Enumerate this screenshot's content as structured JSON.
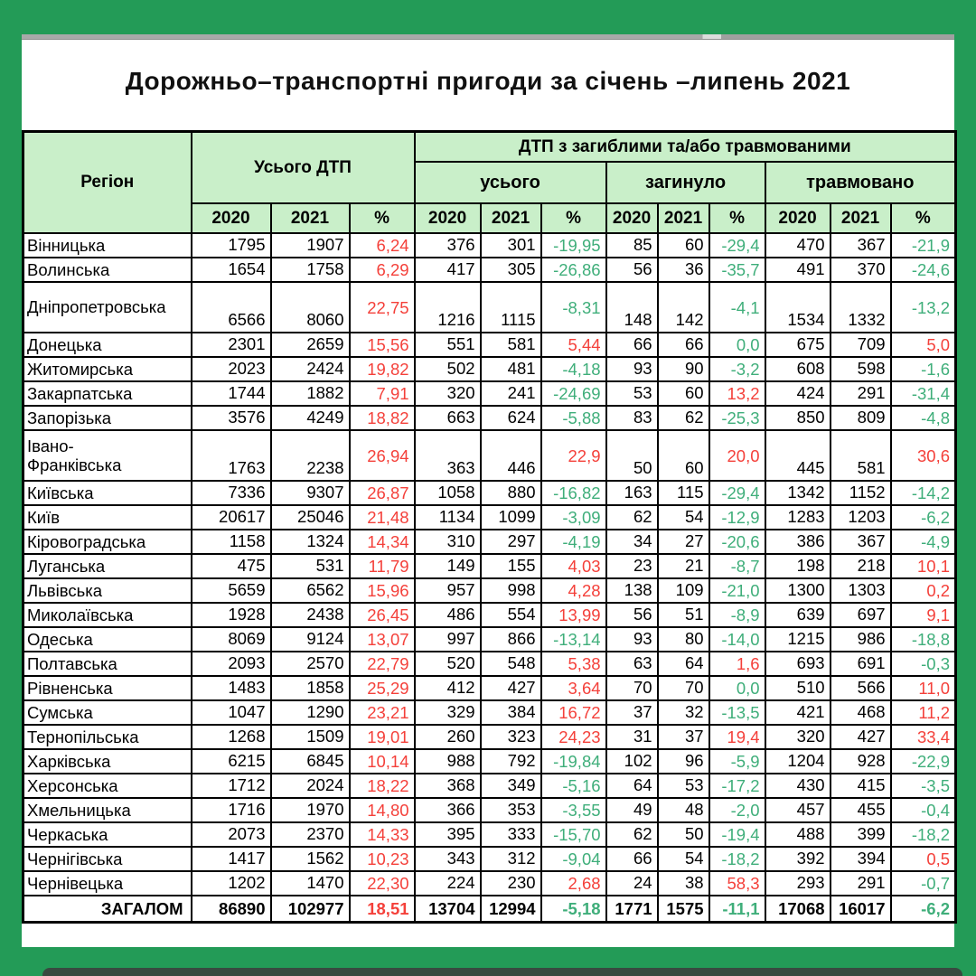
{
  "title": "Дорожньо–транспортні пригоди за січень –липень 2021",
  "colors": {
    "frame_green": "#239b57",
    "header_fill": "#c9efc9",
    "positive_red": "#f4403a",
    "negative_green": "#3fae7a"
  },
  "table": {
    "region_header": "Регіон",
    "total_dtp_header": "Усього ДТП",
    "casualties_header": "ДТП з загиблими та/або травмованими",
    "subgroups": [
      "усього",
      "загинуло",
      "травмовано"
    ],
    "year_headers": [
      "2020",
      "2021",
      "%"
    ],
    "rows": [
      {
        "region": "Вінницька",
        "values": [
          "1795",
          "1907",
          "6,24",
          "376",
          "301",
          "-19,95",
          "85",
          "60",
          "-29,4",
          "470",
          "367",
          "-21,9"
        ]
      },
      {
        "region": "Волинська",
        "values": [
          "1654",
          "1758",
          "6,29",
          "417",
          "305",
          "-26,86",
          "56",
          "36",
          "-35,7",
          "491",
          "370",
          "-24,6"
        ]
      },
      {
        "region": "Дніпропетровська",
        "tall": true,
        "values": [
          "6566",
          "8060",
          "22,75",
          "1216",
          "1115",
          "-8,31",
          "148",
          "142",
          "-4,1",
          "1534",
          "1332",
          "-13,2"
        ]
      },
      {
        "region": "Донецька",
        "values": [
          "2301",
          "2659",
          "15,56",
          "551",
          "581",
          "5,44",
          "66",
          "66",
          "0,0",
          "675",
          "709",
          "5,0"
        ]
      },
      {
        "region": "Житомирська",
        "values": [
          "2023",
          "2424",
          "19,82",
          "502",
          "481",
          "-4,18",
          "93",
          "90",
          "-3,2",
          "608",
          "598",
          "-1,6"
        ]
      },
      {
        "region": "Закарпатська",
        "values": [
          "1744",
          "1882",
          "7,91",
          "320",
          "241",
          "-24,69",
          "53",
          "60",
          "13,2",
          "424",
          "291",
          "-31,4"
        ]
      },
      {
        "region": "Запорізька",
        "values": [
          "3576",
          "4249",
          "18,82",
          "663",
          "624",
          "-5,88",
          "83",
          "62",
          "-25,3",
          "850",
          "809",
          "-4,8"
        ]
      },
      {
        "region": "Івано-\nФранківська",
        "tall": true,
        "values": [
          "1763",
          "2238",
          "26,94",
          "363",
          "446",
          "22,9",
          "50",
          "60",
          "20,0",
          "445",
          "581",
          "30,6"
        ]
      },
      {
        "region": "Київська",
        "values": [
          "7336",
          "9307",
          "26,87",
          "1058",
          "880",
          "-16,82",
          "163",
          "115",
          "-29,4",
          "1342",
          "1152",
          "-14,2"
        ]
      },
      {
        "region": "Київ",
        "values": [
          "20617",
          "25046",
          "21,48",
          "1134",
          "1099",
          "-3,09",
          "62",
          "54",
          "-12,9",
          "1283",
          "1203",
          "-6,2"
        ]
      },
      {
        "region": "Кіровоградська",
        "values": [
          "1158",
          "1324",
          "14,34",
          "310",
          "297",
          "-4,19",
          "34",
          "27",
          "-20,6",
          "386",
          "367",
          "-4,9"
        ]
      },
      {
        "region": "Луганська",
        "values": [
          "475",
          "531",
          "11,79",
          "149",
          "155",
          "4,03",
          "23",
          "21",
          "-8,7",
          "198",
          "218",
          "10,1"
        ]
      },
      {
        "region": "Львівська",
        "values": [
          "5659",
          "6562",
          "15,96",
          "957",
          "998",
          "4,28",
          "138",
          "109",
          "-21,0",
          "1300",
          "1303",
          "0,2"
        ]
      },
      {
        "region": "Миколаївська",
        "values": [
          "1928",
          "2438",
          "26,45",
          "486",
          "554",
          "13,99",
          "56",
          "51",
          "-8,9",
          "639",
          "697",
          "9,1"
        ]
      },
      {
        "region": "Одеська",
        "values": [
          "8069",
          "9124",
          "13,07",
          "997",
          "866",
          "-13,14",
          "93",
          "80",
          "-14,0",
          "1215",
          "986",
          "-18,8"
        ]
      },
      {
        "region": "Полтавська",
        "values": [
          "2093",
          "2570",
          "22,79",
          "520",
          "548",
          "5,38",
          "63",
          "64",
          "1,6",
          "693",
          "691",
          "-0,3"
        ]
      },
      {
        "region": "Рівненська",
        "values": [
          "1483",
          "1858",
          "25,29",
          "412",
          "427",
          "3,64",
          "70",
          "70",
          "0,0",
          "510",
          "566",
          "11,0"
        ]
      },
      {
        "region": "Сумська",
        "values": [
          "1047",
          "1290",
          "23,21",
          "329",
          "384",
          "16,72",
          "37",
          "32",
          "-13,5",
          "421",
          "468",
          "11,2"
        ]
      },
      {
        "region": "Тернопільська",
        "values": [
          "1268",
          "1509",
          "19,01",
          "260",
          "323",
          "24,23",
          "31",
          "37",
          "19,4",
          "320",
          "427",
          "33,4"
        ]
      },
      {
        "region": "Харківська",
        "values": [
          "6215",
          "6845",
          "10,14",
          "988",
          "792",
          "-19,84",
          "102",
          "96",
          "-5,9",
          "1204",
          "928",
          "-22,9"
        ]
      },
      {
        "region": "Херсонська",
        "values": [
          "1712",
          "2024",
          "18,22",
          "368",
          "349",
          "-5,16",
          "64",
          "53",
          "-17,2",
          "430",
          "415",
          "-3,5"
        ]
      },
      {
        "region": "Хмельницька",
        "values": [
          "1716",
          "1970",
          "14,80",
          "366",
          "353",
          "-3,55",
          "49",
          "48",
          "-2,0",
          "457",
          "455",
          "-0,4"
        ]
      },
      {
        "region": "Черкаська",
        "values": [
          "2073",
          "2370",
          "14,33",
          "395",
          "333",
          "-15,70",
          "62",
          "50",
          "-19,4",
          "488",
          "399",
          "-18,2"
        ]
      },
      {
        "region": "Чернігівська",
        "values": [
          "1417",
          "1562",
          "10,23",
          "343",
          "312",
          "-9,04",
          "66",
          "54",
          "-18,2",
          "392",
          "394",
          "0,5"
        ]
      },
      {
        "region": "Чернівецька",
        "values": [
          "1202",
          "1470",
          "22,30",
          "224",
          "230",
          "2,68",
          "24",
          "38",
          "58,3",
          "293",
          "291",
          "-0,7"
        ]
      },
      {
        "region": "ЗАГАЛОМ",
        "total": true,
        "values": [
          "86890",
          "102977",
          "18,51",
          "13704",
          "12994",
          "-5,18",
          "1771",
          "1575",
          "-11,1",
          "17068",
          "16017",
          "-6,2"
        ]
      }
    ]
  }
}
